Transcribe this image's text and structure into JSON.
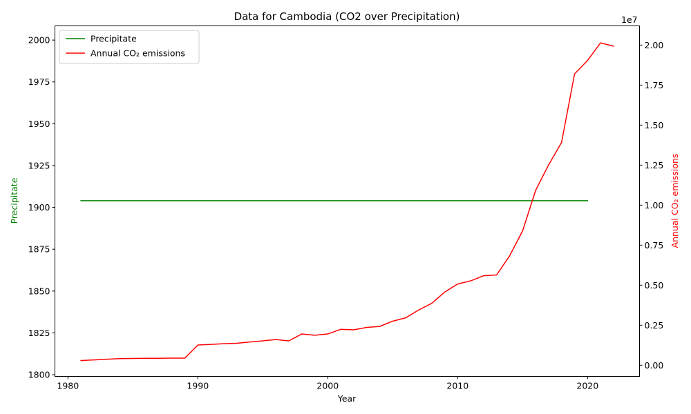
{
  "chart_data": {
    "type": "line",
    "title": "Data for Cambodia (CO2 over Precipitation)",
    "xlabel": "Year",
    "xlim": [
      1979,
      2024
    ],
    "x_ticks": [
      1980,
      1990,
      2000,
      2010,
      2020
    ],
    "left_axis": {
      "label": "Precipitate",
      "color": "#008000",
      "ylim": [
        1799,
        2008.5
      ],
      "ticks": [
        1800,
        1825,
        1850,
        1875,
        1900,
        1925,
        1950,
        1975,
        2000
      ]
    },
    "right_axis": {
      "label": "Annual CO₂ emissions",
      "color": "#ff0000",
      "ylim": [
        -700000,
        21200000
      ],
      "ticks": [
        0,
        2500000,
        5000000,
        7500000,
        10000000,
        12500000,
        15000000,
        17500000,
        20000000
      ],
      "tick_labels": [
        "0.00",
        "0.25",
        "0.50",
        "0.75",
        "1.00",
        "1.25",
        "1.50",
        "1.75",
        "2.00"
      ],
      "offset_label": "1e7"
    },
    "series": [
      {
        "name": "Precipitate",
        "axis": "left",
        "color": "#008000",
        "x": [
          1981,
          1982,
          1983,
          1984,
          1985,
          1986,
          1987,
          1988,
          1989,
          1990,
          1991,
          1992,
          1993,
          1994,
          1995,
          1996,
          1997,
          1998,
          1999,
          2000,
          2001,
          2002,
          2003,
          2004,
          2005,
          2006,
          2007,
          2008,
          2009,
          2010,
          2011,
          2012,
          2013,
          2014,
          2015,
          2016,
          2017,
          2018,
          2019,
          2020
        ],
        "y": [
          1904,
          1904,
          1904,
          1904,
          1904,
          1904,
          1904,
          1904,
          1904,
          1904,
          1904,
          1904,
          1904,
          1904,
          1904,
          1904,
          1904,
          1904,
          1904,
          1904,
          1904,
          1904,
          1904,
          1904,
          1904,
          1904,
          1904,
          1904,
          1904,
          1904,
          1904,
          1904,
          1904,
          1904,
          1904,
          1904,
          1904,
          1904,
          1904,
          1904
        ]
      },
      {
        "name": "Annual CO₂ emissions",
        "axis": "right",
        "color": "#ff0000",
        "x": [
          1981,
          1982,
          1983,
          1984,
          1985,
          1986,
          1987,
          1988,
          1989,
          1990,
          1991,
          1992,
          1993,
          1994,
          1995,
          1996,
          1997,
          1998,
          1999,
          2000,
          2001,
          2002,
          2003,
          2004,
          2005,
          2006,
          2007,
          2008,
          2009,
          2010,
          2011,
          2012,
          2013,
          2014,
          2015,
          2016,
          2017,
          2018,
          2019,
          2020,
          2021,
          2022
        ],
        "y": [
          290000,
          330000,
          370000,
          410000,
          420000,
          430000,
          430000,
          440000,
          440000,
          1260000,
          1300000,
          1340000,
          1370000,
          1450000,
          1520000,
          1600000,
          1520000,
          1950000,
          1870000,
          1950000,
          2240000,
          2210000,
          2360000,
          2420000,
          2750000,
          2960000,
          3450000,
          3860000,
          4570000,
          5070000,
          5270000,
          5590000,
          5640000,
          6830000,
          8390000,
          10920000,
          12510000,
          13920000,
          18200000,
          19040000,
          20140000,
          19930000
        ]
      }
    ],
    "legend": {
      "position": "upper-left"
    }
  }
}
